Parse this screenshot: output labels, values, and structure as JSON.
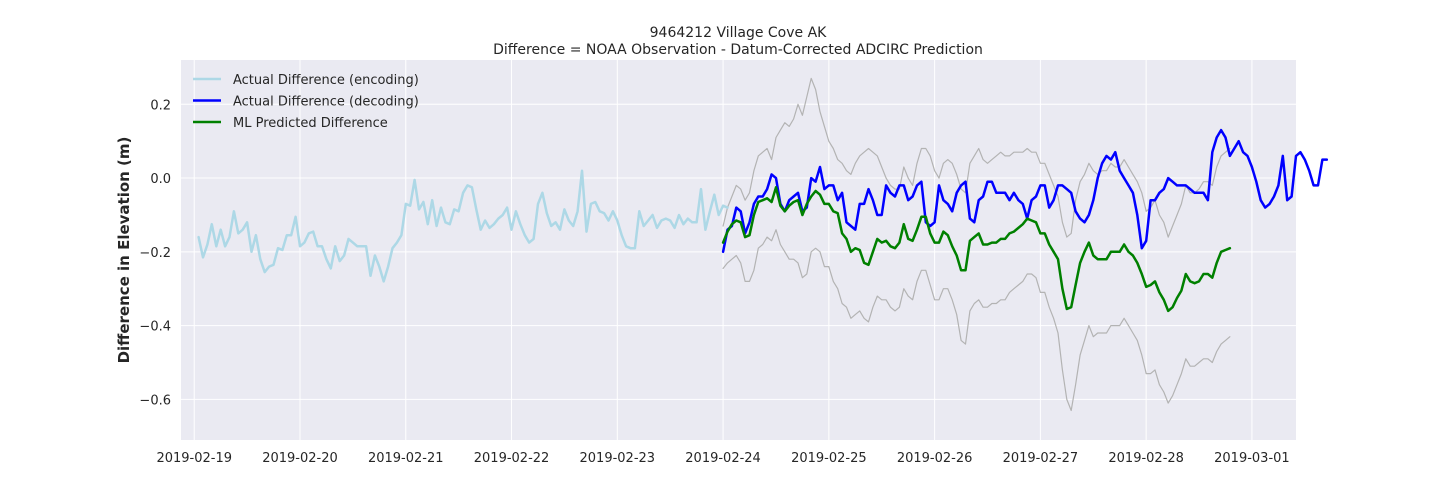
{
  "chart_data": {
    "type": "line",
    "title": "9464212 Village Cove AK",
    "subtitle": "Difference = NOAA Observation - Datum-Corrected ADCIRC Prediction",
    "xlabel": "",
    "ylabel": "Difference in Elevation (m)",
    "x_is_date": true,
    "xlim": [
      "2019-02-18T21:00",
      "2019-03-01T10:00"
    ],
    "ylim": [
      -0.71,
      0.32
    ],
    "x_ticks": [
      "2019-02-19",
      "2019-02-20",
      "2019-02-21",
      "2019-02-22",
      "2019-02-23",
      "2019-02-24",
      "2019-02-25",
      "2019-02-26",
      "2019-02-27",
      "2019-02-28",
      "2019-03-01"
    ],
    "y_ticks": [
      0.2,
      0.0,
      -0.2,
      -0.4,
      -0.6
    ],
    "y_tick_labels": [
      "0.2",
      "0.0",
      "−0.2",
      "−0.4",
      "−0.6"
    ],
    "grid": true,
    "background": "#eaeaf2",
    "legend_position": "top-left",
    "series": [
      {
        "name": "Actual Difference (encoding)",
        "color": "#add8e6",
        "width": 2.5,
        "in_legend": true,
        "start": "2019-02-19T01:00",
        "step_hours": 1,
        "values": [
          -0.16,
          -0.215,
          -0.18,
          -0.125,
          -0.185,
          -0.14,
          -0.185,
          -0.16,
          -0.09,
          -0.15,
          -0.14,
          -0.12,
          -0.2,
          -0.155,
          -0.22,
          -0.255,
          -0.24,
          -0.235,
          -0.19,
          -0.195,
          -0.155,
          -0.155,
          -0.105,
          -0.185,
          -0.175,
          -0.15,
          -0.145,
          -0.185,
          -0.185,
          -0.22,
          -0.245,
          -0.185,
          -0.225,
          -0.21,
          -0.165,
          -0.175,
          -0.185,
          -0.185,
          -0.185,
          -0.265,
          -0.21,
          -0.24,
          -0.28,
          -0.24,
          -0.19,
          -0.175,
          -0.155,
          -0.07,
          -0.075,
          -0.005,
          -0.085,
          -0.065,
          -0.125,
          -0.06,
          -0.13,
          -0.08,
          -0.12,
          -0.125,
          -0.085,
          -0.09,
          -0.04,
          -0.02,
          -0.025,
          -0.085,
          -0.14,
          -0.115,
          -0.135,
          -0.125,
          -0.11,
          -0.1,
          -0.08,
          -0.14,
          -0.09,
          -0.125,
          -0.155,
          -0.175,
          -0.165,
          -0.07,
          -0.04,
          -0.095,
          -0.13,
          -0.12,
          -0.14,
          -0.085,
          -0.115,
          -0.13,
          -0.09,
          0.02,
          -0.145,
          -0.07,
          -0.065,
          -0.09,
          -0.095,
          -0.115,
          -0.09,
          -0.115,
          -0.155,
          -0.185,
          -0.19,
          -0.19,
          -0.09,
          -0.13,
          -0.115,
          -0.1,
          -0.135,
          -0.115,
          -0.11,
          -0.115,
          -0.135,
          -0.1,
          -0.125,
          -0.11,
          -0.12,
          -0.12,
          -0.03,
          -0.14,
          -0.09,
          -0.045,
          -0.1,
          -0.075,
          -0.08
        ]
      },
      {
        "name": "Actual Difference (decoding)",
        "color": "#0000ff",
        "width": 2.5,
        "in_legend": true,
        "start": "2019-02-24T00:00",
        "step_hours": 1,
        "values": [
          -0.2,
          -0.14,
          -0.13,
          -0.08,
          -0.09,
          -0.15,
          -0.12,
          -0.07,
          -0.05,
          -0.05,
          -0.03,
          0.01,
          0.0,
          -0.07,
          -0.09,
          -0.06,
          -0.05,
          -0.04,
          -0.09,
          -0.08,
          0.0,
          -0.01,
          0.03,
          -0.03,
          -0.02,
          -0.02,
          -0.06,
          -0.04,
          -0.12,
          -0.13,
          -0.14,
          -0.07,
          -0.07,
          -0.03,
          -0.06,
          -0.1,
          -0.1,
          -0.02,
          -0.04,
          -0.05,
          -0.02,
          -0.02,
          -0.06,
          -0.05,
          -0.02,
          -0.01,
          -0.12,
          -0.13,
          -0.12,
          -0.02,
          -0.06,
          -0.07,
          -0.09,
          -0.04,
          -0.02,
          -0.01,
          -0.11,
          -0.12,
          -0.06,
          -0.05,
          -0.01,
          -0.01,
          -0.04,
          -0.04,
          -0.04,
          -0.06,
          -0.04,
          -0.06,
          -0.07,
          -0.11,
          -0.06,
          -0.05,
          -0.02,
          -0.02,
          -0.08,
          -0.06,
          -0.02,
          -0.02,
          -0.03,
          -0.04,
          -0.09,
          -0.11,
          -0.12,
          -0.1,
          -0.06,
          0.0,
          0.04,
          0.06,
          0.05,
          0.07,
          0.02,
          0.0,
          -0.02,
          -0.04,
          -0.1,
          -0.19,
          -0.17,
          -0.06,
          -0.06,
          -0.04,
          -0.03,
          -0.0,
          -0.01,
          -0.02,
          -0.02,
          -0.02,
          -0.03,
          -0.04,
          -0.04,
          -0.04,
          -0.06,
          0.07,
          0.11,
          0.13,
          0.11,
          0.06,
          0.08,
          0.1,
          0.07,
          0.06,
          0.03,
          -0.01,
          -0.06,
          -0.08,
          -0.07,
          -0.05,
          -0.02,
          0.06,
          -0.06,
          -0.05,
          0.06,
          0.07,
          0.05,
          0.02,
          -0.02,
          -0.02,
          0.05,
          0.05
        ]
      },
      {
        "name": "ML Predicted Difference",
        "color": "#008000",
        "width": 2.5,
        "in_legend": true,
        "start": "2019-02-24T00:00",
        "step_hours": 1,
        "values": [
          -0.175,
          -0.145,
          -0.125,
          -0.115,
          -0.12,
          -0.16,
          -0.155,
          -0.1,
          -0.065,
          -0.06,
          -0.055,
          -0.065,
          -0.025,
          -0.075,
          -0.09,
          -0.075,
          -0.065,
          -0.06,
          -0.1,
          -0.07,
          -0.05,
          -0.035,
          -0.045,
          -0.07,
          -0.07,
          -0.09,
          -0.095,
          -0.15,
          -0.165,
          -0.2,
          -0.19,
          -0.195,
          -0.23,
          -0.235,
          -0.2,
          -0.165,
          -0.175,
          -0.17,
          -0.185,
          -0.19,
          -0.175,
          -0.125,
          -0.165,
          -0.17,
          -0.14,
          -0.105,
          -0.105,
          -0.15,
          -0.175,
          -0.175,
          -0.145,
          -0.155,
          -0.185,
          -0.21,
          -0.25,
          -0.25,
          -0.17,
          -0.16,
          -0.15,
          -0.18,
          -0.18,
          -0.175,
          -0.175,
          -0.165,
          -0.165,
          -0.15,
          -0.145,
          -0.135,
          -0.125,
          -0.11,
          -0.115,
          -0.12,
          -0.15,
          -0.15,
          -0.18,
          -0.2,
          -0.22,
          -0.3,
          -0.355,
          -0.35,
          -0.29,
          -0.23,
          -0.2,
          -0.175,
          -0.21,
          -0.22,
          -0.22,
          -0.22,
          -0.2,
          -0.2,
          -0.2,
          -0.18,
          -0.2,
          -0.21,
          -0.23,
          -0.26,
          -0.295,
          -0.29,
          -0.28,
          -0.31,
          -0.33,
          -0.36,
          -0.35,
          -0.325,
          -0.305,
          -0.26,
          -0.28,
          -0.285,
          -0.28,
          -0.26,
          -0.26,
          -0.27,
          -0.23,
          -0.2,
          -0.195,
          -0.19
        ]
      },
      {
        "name": "",
        "color": "#b3b3b3",
        "width": 1.2,
        "in_legend": false,
        "start": "2019-02-24T00:00",
        "step_hours": 1,
        "values": [
          -0.245,
          -0.23,
          -0.22,
          -0.21,
          -0.23,
          -0.28,
          -0.28,
          -0.25,
          -0.19,
          -0.18,
          -0.16,
          -0.17,
          -0.14,
          -0.18,
          -0.2,
          -0.22,
          -0.22,
          -0.23,
          -0.27,
          -0.26,
          -0.2,
          -0.19,
          -0.2,
          -0.24,
          -0.24,
          -0.28,
          -0.3,
          -0.34,
          -0.35,
          -0.38,
          -0.37,
          -0.36,
          -0.38,
          -0.39,
          -0.35,
          -0.32,
          -0.33,
          -0.33,
          -0.35,
          -0.36,
          -0.35,
          -0.3,
          -0.32,
          -0.33,
          -0.28,
          -0.25,
          -0.25,
          -0.29,
          -0.33,
          -0.33,
          -0.3,
          -0.3,
          -0.33,
          -0.37,
          -0.44,
          -0.45,
          -0.36,
          -0.34,
          -0.33,
          -0.35,
          -0.35,
          -0.34,
          -0.34,
          -0.33,
          -0.33,
          -0.31,
          -0.3,
          -0.29,
          -0.28,
          -0.26,
          -0.26,
          -0.27,
          -0.31,
          -0.31,
          -0.35,
          -0.38,
          -0.42,
          -0.52,
          -0.6,
          -0.63,
          -0.56,
          -0.48,
          -0.44,
          -0.4,
          -0.43,
          -0.42,
          -0.42,
          -0.42,
          -0.4,
          -0.4,
          -0.4,
          -0.38,
          -0.4,
          -0.42,
          -0.44,
          -0.48,
          -0.53,
          -0.53,
          -0.52,
          -0.56,
          -0.58,
          -0.61,
          -0.59,
          -0.56,
          -0.53,
          -0.49,
          -0.51,
          -0.51,
          -0.5,
          -0.49,
          -0.49,
          -0.5,
          -0.47,
          -0.45,
          -0.44,
          -0.43
        ]
      },
      {
        "name": "",
        "color": "#b3b3b3",
        "width": 1.2,
        "in_legend": false,
        "start": "2019-02-24T00:00",
        "step_hours": 1,
        "values": [
          -0.13,
          -0.08,
          -0.05,
          -0.02,
          -0.03,
          -0.06,
          -0.04,
          0.02,
          0.06,
          0.07,
          0.08,
          0.05,
          0.11,
          0.13,
          0.15,
          0.14,
          0.16,
          0.2,
          0.17,
          0.22,
          0.27,
          0.24,
          0.18,
          0.14,
          0.1,
          0.08,
          0.05,
          0.04,
          0.02,
          0.01,
          0.04,
          0.06,
          0.07,
          0.08,
          0.07,
          0.06,
          0.03,
          0.0,
          -0.02,
          -0.03,
          -0.03,
          0.03,
          0.0,
          -0.02,
          0.04,
          0.08,
          0.08,
          0.06,
          0.02,
          0.0,
          0.04,
          0.05,
          0.04,
          0.01,
          -0.03,
          -0.04,
          0.04,
          0.06,
          0.08,
          0.05,
          0.04,
          0.05,
          0.06,
          0.07,
          0.06,
          0.06,
          0.07,
          0.07,
          0.07,
          0.08,
          0.07,
          0.07,
          0.04,
          0.04,
          0.01,
          -0.02,
          -0.05,
          -0.12,
          -0.16,
          -0.15,
          -0.06,
          -0.01,
          0.01,
          0.04,
          0.02,
          0.01,
          0.02,
          0.02,
          0.04,
          0.03,
          0.03,
          0.05,
          0.03,
          0.01,
          -0.01,
          -0.04,
          -0.09,
          -0.08,
          -0.06,
          -0.1,
          -0.12,
          -0.16,
          -0.13,
          -0.1,
          -0.07,
          -0.02,
          -0.04,
          -0.04,
          -0.03,
          -0.01,
          -0.01,
          -0.02,
          0.03,
          0.06,
          0.07,
          0.08
        ]
      }
    ]
  }
}
